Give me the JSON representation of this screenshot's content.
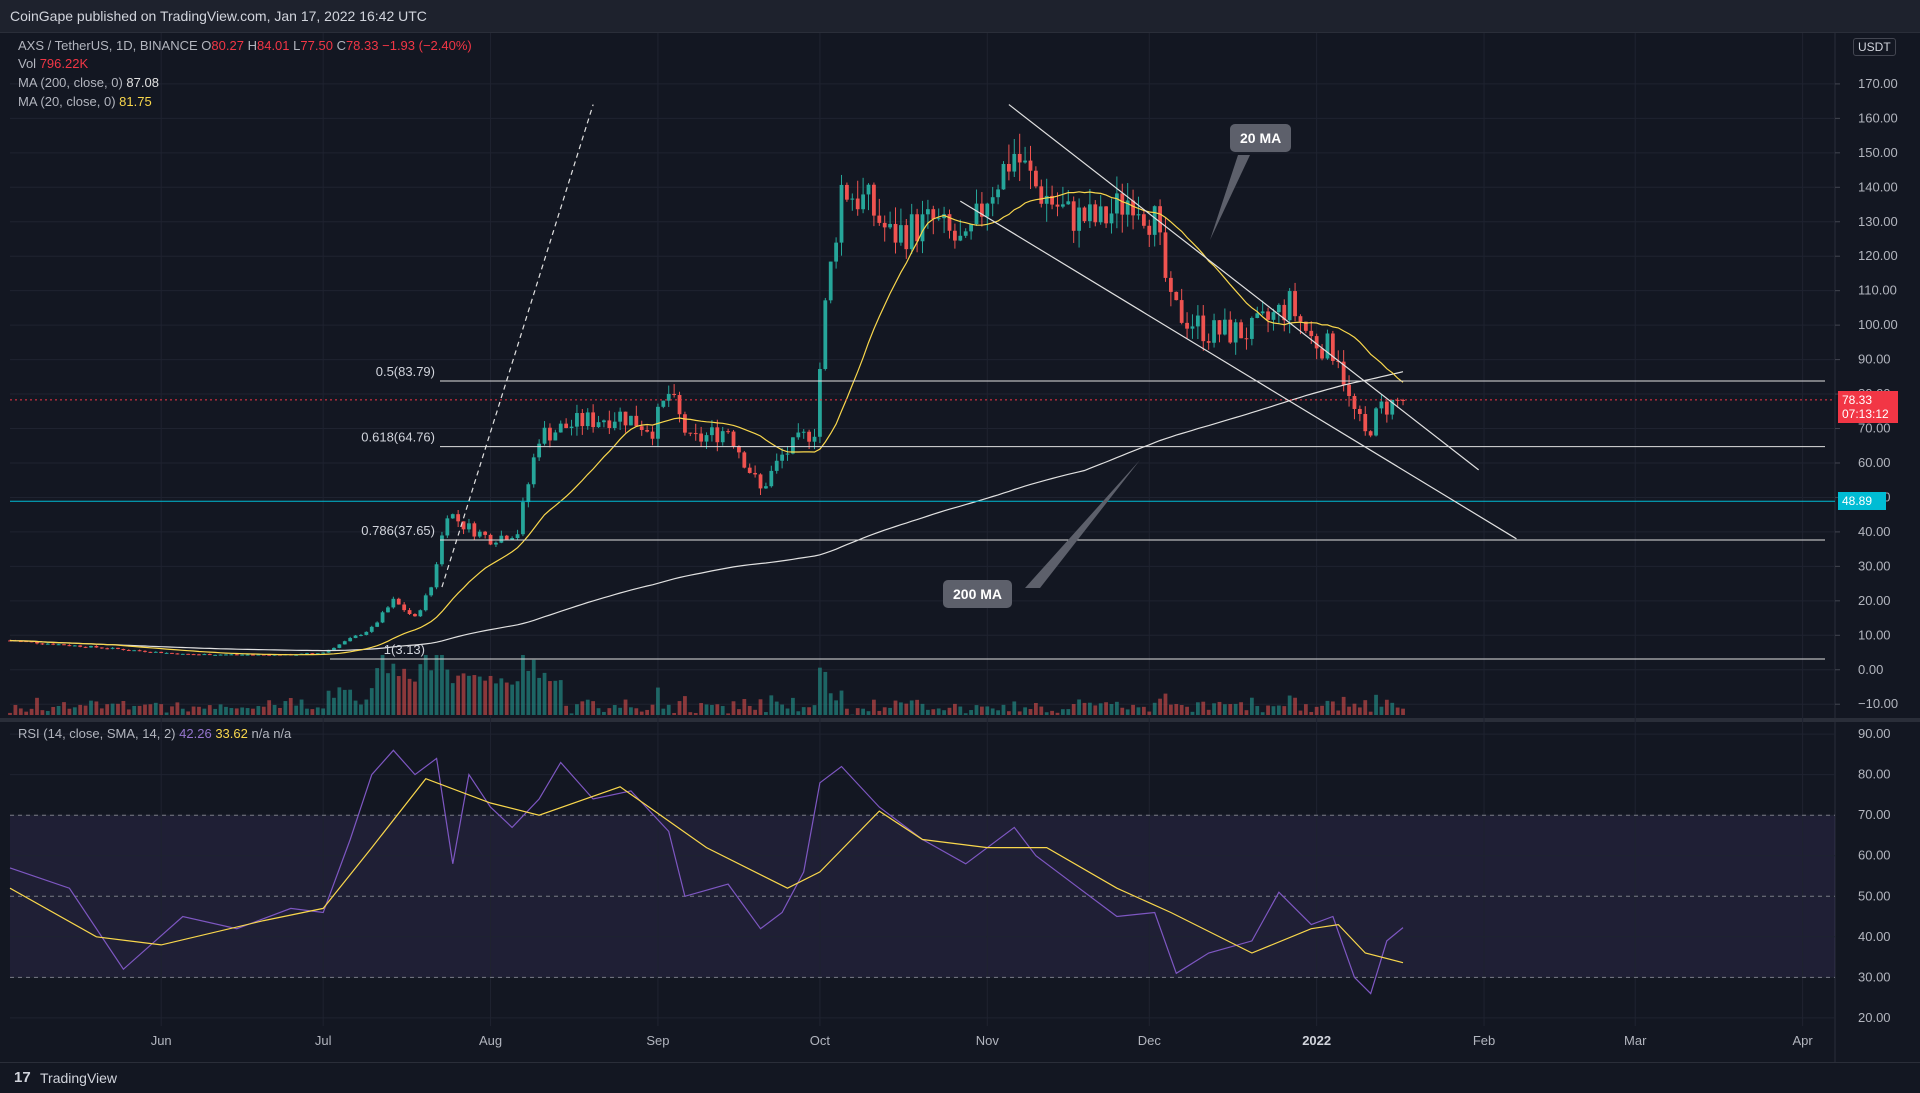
{
  "header": {
    "published": "CoinGape published on TradingView.com, Jan 17, 2022 16:42 UTC"
  },
  "legend": {
    "symbol": "AXS / TetherUS, 1D, BINANCE",
    "o_label": "O",
    "o": "80.27",
    "h_label": "H",
    "h": "84.01",
    "l_label": "L",
    "l": "77.50",
    "c_label": "C",
    "c": "78.33",
    "change": "−1.93 (−2.40%)",
    "vol_label": "Vol",
    "vol": "796.22K",
    "ma200_label": "MA (200, close, 0)",
    "ma200": "87.08",
    "ma20_label": "MA (20, close, 0)",
    "ma20": "81.75",
    "rsi_label": "RSI (14, close, SMA, 14, 2)",
    "rsi": "42.26",
    "rsi_sma": "33.62",
    "rsi_na1": "n/a",
    "rsi_na2": "n/a"
  },
  "annotations": {
    "callout_20ma": "20 MA",
    "callout_200ma": "200 MA",
    "currency": "USDT",
    "price_tag": "78.33",
    "price_timer": "07:13:12",
    "support_tag": "48.89"
  },
  "footer": {
    "logo": "17",
    "brand": "TradingView"
  },
  "colors": {
    "up": "#26a69a",
    "down": "#ef5350",
    "ma20": "#f9d74c",
    "ma200": "#e0e0e0",
    "rsi": "#7e57c2",
    "support": "#00bcd4",
    "current": "#f23645"
  },
  "chart_data": [
    {
      "type": "candlestick",
      "title": "AXS / TetherUS, 1D, BINANCE",
      "ylabel": "USDT",
      "ylim": [
        -14,
        181
      ],
      "y_ticks": [
        -10,
        0,
        10,
        20,
        30,
        40,
        50,
        60,
        70,
        80,
        90,
        100,
        110,
        120,
        130,
        140,
        150,
        160,
        170
      ],
      "y_tick_labels": [
        "−10.00",
        "0.00",
        "10.00",
        "20.00",
        "30.00",
        "40.00",
        "50.00",
        "60.00",
        "70.00",
        "80.00",
        "90.00",
        "100.00",
        "110.00",
        "120.00",
        "130.00",
        "140.00",
        "150.00",
        "160.00",
        "170.00"
      ],
      "x_ticks": [
        {
          "date": "2021-06-01",
          "label": "Jun"
        },
        {
          "date": "2021-07-01",
          "label": "Jul"
        },
        {
          "date": "2021-08-01",
          "label": "Aug"
        },
        {
          "date": "2021-09-01",
          "label": "Sep"
        },
        {
          "date": "2021-10-01",
          "label": "Oct"
        },
        {
          "date": "2021-11-01",
          "label": "Nov"
        },
        {
          "date": "2021-12-01",
          "label": "Dec"
        },
        {
          "date": "2022-01-01",
          "label": "2022"
        },
        {
          "date": "2022-02-01",
          "label": "Feb"
        },
        {
          "date": "2022-03-01",
          "label": "Mar"
        },
        {
          "date": "2022-04-01",
          "label": "Apr"
        }
      ],
      "xlim": [
        "2021-05-04",
        "2022-04-07"
      ],
      "grid": true,
      "price_path": [
        [
          "2021-05-04",
          8.5
        ],
        [
          "2021-05-20",
          6.5
        ],
        [
          "2021-06-05",
          4.5
        ],
        [
          "2021-06-25",
          4.3
        ],
        [
          "2021-07-01",
          5
        ],
        [
          "2021-07-10",
          12
        ],
        [
          "2021-07-14",
          20
        ],
        [
          "2021-07-18",
          15
        ],
        [
          "2021-07-21",
          24
        ],
        [
          "2021-07-24",
          46
        ],
        [
          "2021-07-27",
          42
        ],
        [
          "2021-08-01",
          38
        ],
        [
          "2021-08-06",
          40
        ],
        [
          "2021-08-10",
          68
        ],
        [
          "2021-08-18",
          72
        ],
        [
          "2021-08-25",
          74
        ],
        [
          "2021-08-31",
          70
        ],
        [
          "2021-09-03",
          80
        ],
        [
          "2021-09-07",
          66
        ],
        [
          "2021-09-14",
          70
        ],
        [
          "2021-09-20",
          52
        ],
        [
          "2021-09-24",
          62
        ],
        [
          "2021-09-30",
          70
        ],
        [
          "2021-10-02",
          105
        ],
        [
          "2021-10-05",
          140
        ],
        [
          "2021-10-10",
          135
        ],
        [
          "2021-10-14",
          126
        ],
        [
          "2021-10-22",
          130
        ],
        [
          "2021-10-28",
          122
        ],
        [
          "2021-11-01",
          138
        ],
        [
          "2021-11-06",
          150
        ],
        [
          "2021-11-10",
          140
        ],
        [
          "2021-11-16",
          132
        ],
        [
          "2021-11-22",
          130
        ],
        [
          "2021-11-28",
          138
        ],
        [
          "2021-12-02",
          130
        ],
        [
          "2021-12-05",
          105
        ],
        [
          "2021-12-12",
          98
        ],
        [
          "2021-12-20",
          98
        ],
        [
          "2021-12-27",
          106
        ],
        [
          "2021-12-31",
          96
        ],
        [
          "2022-01-05",
          92
        ],
        [
          "2022-01-07",
          78
        ],
        [
          "2022-01-10",
          68
        ],
        [
          "2022-01-13",
          76
        ],
        [
          "2022-01-17",
          78.33
        ]
      ],
      "fib_levels": [
        {
          "label": "0.5(83.79)",
          "value": 83.79
        },
        {
          "label": "0.618(64.76)",
          "value": 64.76
        },
        {
          "label": "0.786(37.65)",
          "value": 37.65
        },
        {
          "label": "1(3.13)",
          "value": 3.13
        }
      ],
      "support": 48.89,
      "current": 78.33,
      "trendlines": [
        {
          "name": "upper",
          "points": [
            [
              "2021-11-05",
              164
            ],
            [
              "2022-01-31",
              58
            ]
          ]
        },
        {
          "name": "lower",
          "points": [
            [
              "2021-10-27",
              136
            ],
            [
              "2022-02-07",
              38
            ]
          ]
        },
        {
          "name": "steep",
          "points": [
            [
              "2021-07-23",
              24
            ],
            [
              "2021-08-20",
              164
            ]
          ]
        }
      ]
    },
    {
      "type": "line",
      "title": "RSI (14, close, SMA, 14, 2)",
      "ylim": [
        18,
        92
      ],
      "y_ticks": [
        20,
        30,
        40,
        50,
        60,
        70,
        80,
        90
      ],
      "y_tick_labels": [
        "20.00",
        "30.00",
        "40.00",
        "50.00",
        "60.00",
        "70.00",
        "80.00",
        "90.00"
      ],
      "band": [
        30,
        70
      ],
      "series": [
        {
          "values_path": [
            [
              "2021-05-04",
              57
            ],
            [
              "2021-05-15",
              52
            ],
            [
              "2021-05-25",
              32
            ],
            [
              "2021-06-05",
              45
            ],
            [
              "2021-06-15",
              42
            ],
            [
              "2021-06-25",
              47
            ],
            [
              "2021-07-01",
              46
            ],
            [
              "2021-07-06",
              64
            ],
            [
              "2021-07-10",
              80
            ],
            [
              "2021-07-14",
              86
            ],
            [
              "2021-07-18",
              80
            ],
            [
              "2021-07-22",
              84
            ],
            [
              "2021-07-25",
              58
            ],
            [
              "2021-07-28",
              80
            ],
            [
              "2021-08-01",
              72
            ],
            [
              "2021-08-05",
              67
            ],
            [
              "2021-08-10",
              74
            ],
            [
              "2021-08-14",
              83
            ],
            [
              "2021-08-20",
              74
            ],
            [
              "2021-08-27",
              76
            ],
            [
              "2021-09-03",
              66
            ],
            [
              "2021-09-06",
              50
            ],
            [
              "2021-09-14",
              53
            ],
            [
              "2021-09-20",
              42
            ],
            [
              "2021-09-24",
              46
            ],
            [
              "2021-09-28",
              56
            ],
            [
              "2021-10-01",
              78
            ],
            [
              "2021-10-05",
              82
            ],
            [
              "2021-10-12",
              72
            ],
            [
              "2021-10-20",
              64
            ],
            [
              "2021-10-28",
              58
            ],
            [
              "2021-11-06",
              67
            ],
            [
              "2021-11-10",
              60
            ],
            [
              "2021-11-18",
              52
            ],
            [
              "2021-11-25",
              45
            ],
            [
              "2021-12-02",
              46
            ],
            [
              "2021-12-06",
              31
            ],
            [
              "2021-12-12",
              36
            ],
            [
              "2021-12-20",
              39
            ],
            [
              "2021-12-25",
              51
            ],
            [
              "2021-12-31",
              43
            ],
            [
              "2022-01-04",
              45
            ],
            [
              "2022-01-08",
              30
            ],
            [
              "2022-01-11",
              26
            ],
            [
              "2022-01-14",
              39
            ],
            [
              "2022-01-17",
              42.26
            ]
          ]
        },
        {
          "values_path": [
            [
              "2021-05-04",
              52
            ],
            [
              "2021-05-20",
              40
            ],
            [
              "2021-06-01",
              38
            ],
            [
              "2021-06-20",
              44
            ],
            [
              "2021-07-01",
              47
            ],
            [
              "2021-07-10",
              62
            ],
            [
              "2021-07-20",
              79
            ],
            [
              "2021-08-01",
              73
            ],
            [
              "2021-08-10",
              70
            ],
            [
              "2021-08-25",
              77
            ],
            [
              "2021-09-10",
              62
            ],
            [
              "2021-09-25",
              52
            ],
            [
              "2021-10-01",
              56
            ],
            [
              "2021-10-12",
              71
            ],
            [
              "2021-10-20",
              64
            ],
            [
              "2021-11-01",
              62
            ],
            [
              "2021-11-12",
              62
            ],
            [
              "2021-11-25",
              52
            ],
            [
              "2021-12-05",
              46
            ],
            [
              "2021-12-20",
              36
            ],
            [
              "2021-12-31",
              42
            ],
            [
              "2022-01-05",
              43
            ],
            [
              "2022-01-10",
              36
            ],
            [
              "2022-01-17",
              33.62
            ]
          ]
        }
      ]
    }
  ]
}
